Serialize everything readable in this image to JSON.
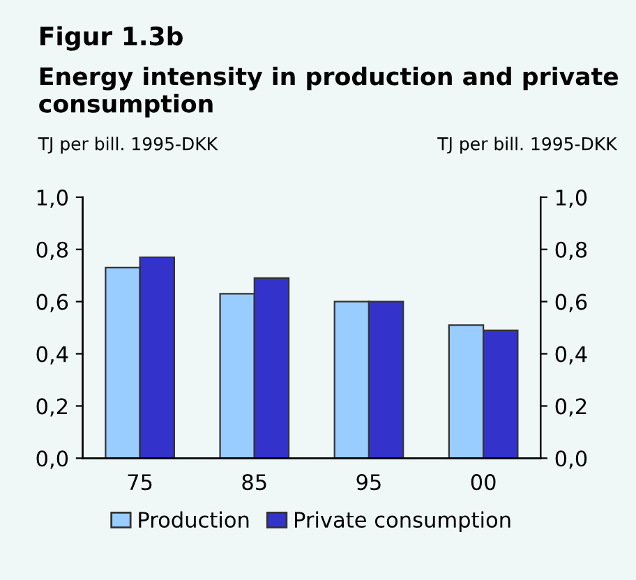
{
  "chart_data": {
    "type": "bar",
    "title": "Figur 1.3b",
    "subtitle": "Energy intensity in production and private consumption",
    "ylabel": "TJ per bill. 1995-DKK",
    "y2label": "TJ per bill. 1995-DKK",
    "categories": [
      "75",
      "85",
      "95",
      "00"
    ],
    "series": [
      {
        "name": "Production",
        "color": "#99ccff",
        "values": [
          0.73,
          0.63,
          0.6,
          0.51
        ]
      },
      {
        "name": "Private consumption",
        "color": "#3333cc",
        "values": [
          0.77,
          0.69,
          0.6,
          0.49
        ]
      }
    ],
    "ylim": [
      0,
      1
    ],
    "yticks": [
      {
        "value": 0,
        "label": "0,0"
      },
      {
        "value": 0.2,
        "label": "0,2"
      },
      {
        "value": 0.4,
        "label": "0,4"
      },
      {
        "value": 0.6,
        "label": "0,6"
      },
      {
        "value": 0.8,
        "label": "0,8"
      },
      {
        "value": 1,
        "label": "1,0"
      }
    ],
    "y2lim": [
      0,
      1
    ],
    "y2ticks": [
      {
        "value": 0,
        "label": "0,0"
      },
      {
        "value": 0.2,
        "label": "0,2"
      },
      {
        "value": 0.4,
        "label": "0,4"
      },
      {
        "value": 0.6,
        "label": "0,6"
      },
      {
        "value": 0.8,
        "label": "0,8"
      },
      {
        "value": 1,
        "label": "1,0"
      }
    ],
    "grid": false,
    "legend": "bottom"
  }
}
